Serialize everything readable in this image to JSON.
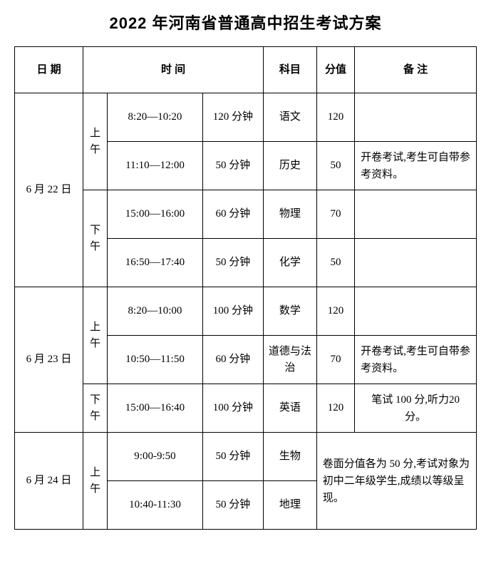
{
  "title": "2022 年河南省普通高中招生考试方案",
  "headers": {
    "date": "日 期",
    "time": "时 间",
    "subject": "科目",
    "score": "分值",
    "remark": "备 注"
  },
  "days": [
    {
      "date": "6 月 22 日",
      "sessions": [
        {
          "period": "上午",
          "exams": [
            {
              "timerange": "8:20—10:20",
              "duration": "120 分钟",
              "subject": "语文",
              "score": "120",
              "remark": ""
            },
            {
              "timerange": "11:10—12:00",
              "duration": "50 分钟",
              "subject": "历史",
              "score": "50",
              "remark": "开卷考试,考生可自带参考资料。"
            }
          ]
        },
        {
          "period": "下午",
          "exams": [
            {
              "timerange": "15:00—16:00",
              "duration": "60 分钟",
              "subject": "物理",
              "score": "70",
              "remark": ""
            },
            {
              "timerange": "16:50—17:40",
              "duration": "50 分钟",
              "subject": "化学",
              "score": "50",
              "remark": ""
            }
          ]
        }
      ]
    },
    {
      "date": "6 月 23 日",
      "sessions": [
        {
          "period": "上午",
          "exams": [
            {
              "timerange": "8:20—10:00",
              "duration": "100 分钟",
              "subject": "数学",
              "score": "120",
              "remark": ""
            },
            {
              "timerange": "10:50—11:50",
              "duration": "60 分钟",
              "subject": "道德与法治",
              "score": "70",
              "remark": "开卷考试,考生可自带参考资料。"
            }
          ]
        },
        {
          "period": "下午",
          "exams": [
            {
              "timerange": "15:00—16:40",
              "duration": "100 分钟",
              "subject": "英语",
              "score": "120",
              "remark": "笔试 100 分,听力20 分。"
            }
          ]
        }
      ]
    },
    {
      "date": "6 月 24 日",
      "merged_remark": "卷面分值各为 50 分,考试对象为初中二年级学生,成绩以等级呈现。",
      "sessions": [
        {
          "period": "上午",
          "exams": [
            {
              "timerange": "9:00-9:50",
              "duration": "50 分钟",
              "subject": "生物",
              "score": ""
            },
            {
              "timerange": "10:40-11:30",
              "duration": "50 分钟",
              "subject": "地理",
              "score": ""
            }
          ]
        }
      ]
    }
  ]
}
